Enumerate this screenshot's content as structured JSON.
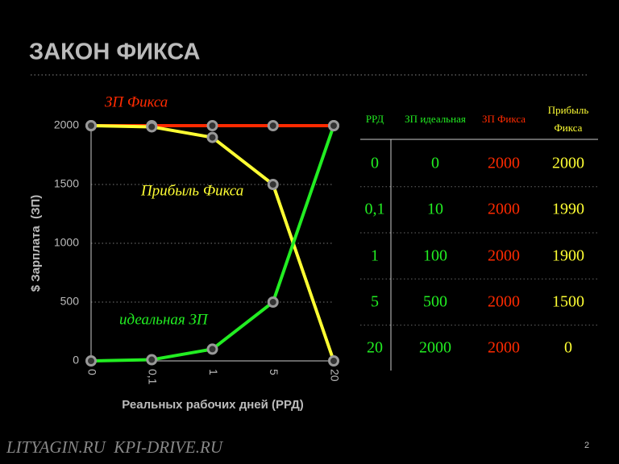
{
  "title": "ЗАКОН ФИКСА",
  "footer": "LITYAGIN.RU  KPI-DRIVE.RU",
  "page_number": "2",
  "chart_data": {
    "type": "line",
    "x_label": "Реальных рабочих дней (РРД)",
    "y_label": "$ Зарплата  (ЗП)",
    "categories": [
      "0",
      "0,1",
      "1",
      "5",
      "20"
    ],
    "series": [
      {
        "name": "ЗП Фикса",
        "color": "#ff2a00",
        "values": [
          2000,
          2000,
          2000,
          2000,
          2000
        ]
      },
      {
        "name": "Прибыль Фикса",
        "color": "#ffff33",
        "values": [
          2000,
          1990,
          1900,
          1500,
          0
        ]
      },
      {
        "name": "идеальная ЗП",
        "color": "#22ee22",
        "values": [
          0,
          10,
          100,
          500,
          2000
        ]
      }
    ],
    "ylim": [
      0,
      2000
    ],
    "yticks": [
      0,
      500,
      1000,
      1500,
      2000
    ],
    "grid": true
  },
  "table": {
    "header": [
      "РРД",
      "ЗП идеальная",
      "ЗП Фикса",
      "Прибыль Фикса"
    ],
    "column_colors": [
      "#22ee22",
      "#22ee22",
      "#ff2a00",
      "#ffff33"
    ],
    "rows": [
      [
        "0",
        "0",
        "2000",
        "2000"
      ],
      [
        "0,1",
        "10",
        "2000",
        "1990"
      ],
      [
        "1",
        "100",
        "2000",
        "1900"
      ],
      [
        "5",
        "500",
        "2000",
        "1500"
      ],
      [
        "20",
        "2000",
        "2000",
        "0"
      ]
    ]
  }
}
